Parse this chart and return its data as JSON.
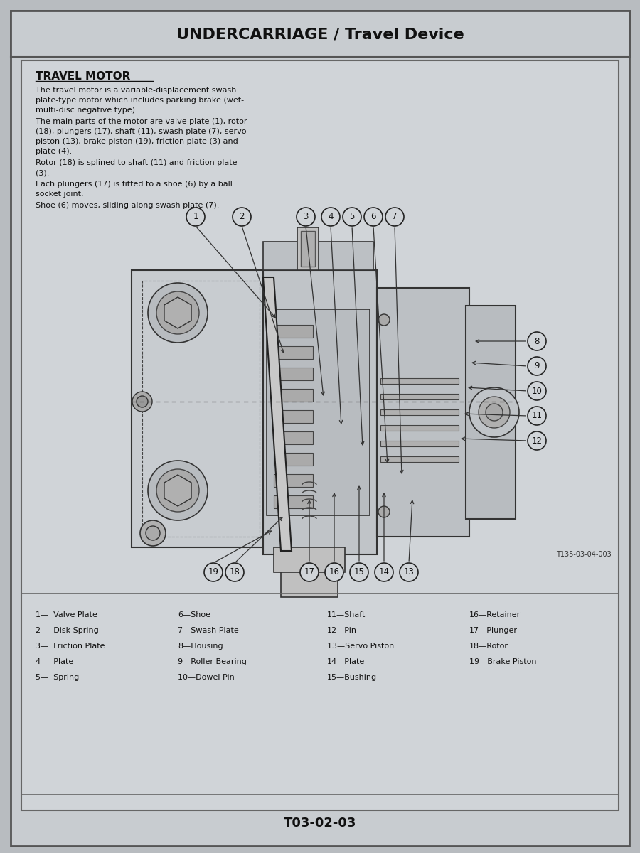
{
  "bg_color": "#b8bcc0",
  "page_color": "#c8ccd0",
  "content_color": "#d0d4d8",
  "title_header": "UNDERCARRIAGE / Travel Device",
  "section_title": "TRAVEL MOTOR",
  "body_para1": "The travel motor is a variable-displacement swash plate-type motor which includes parking brake (wet-multi-disc negative type).",
  "body_para2": "The main parts of the motor are valve plate (1), rotor (18), plungers (17), shaft (11), swash plate (7), servo piston (13), brake piston (19), friction plate (3) and plate (4).",
  "body_para3": "Rotor (18) is splined to shaft (11) and friction plate (3).",
  "body_para4": "Each plungers (17) is fitted to a shoe (6) by a ball socket joint.",
  "body_para5": "Shoe (6) moves, sliding along swash plate (7).",
  "footer_code": "T03-02-03",
  "ref_code": "T135-03-04-003",
  "legend_col1": [
    "1—  Valve Plate",
    "2—  Disk Spring",
    "3—  Friction Plate",
    "4—  Plate",
    "5—  Spring"
  ],
  "legend_col2": [
    "6—Shoe",
    "7—Swash Plate",
    "8—Housing",
    "9—Roller Bearing",
    "10—Dowel Pin"
  ],
  "legend_col3": [
    "11—Shaft",
    "12—Pin",
    "13—Servo Piston",
    "14—Plate",
    "15—Bushing"
  ],
  "legend_col4": [
    "16—Retainer",
    "17—Plunger",
    "18—Rotor",
    "19—Brake Piston",
    ""
  ]
}
